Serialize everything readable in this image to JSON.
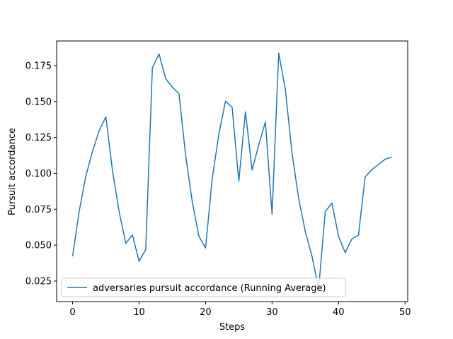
{
  "chart_data": {
    "type": "line",
    "title": "",
    "xlabel": "Steps",
    "ylabel": "Pursuit accordance",
    "xlim": [
      -2.4,
      50.4
    ],
    "ylim": [
      0.0107,
      0.1922
    ],
    "x_ticks": [
      0,
      10,
      20,
      30,
      40,
      50
    ],
    "y_ticks": [
      0.025,
      0.05,
      0.075,
      0.1,
      0.125,
      0.15,
      0.175
    ],
    "x_tick_labels": [
      "0",
      "10",
      "20",
      "30",
      "40",
      "50"
    ],
    "y_tick_labels": [
      "0.025",
      "0.050",
      "0.075",
      "0.100",
      "0.125",
      "0.150",
      "0.175"
    ],
    "grid": false,
    "legend_position": "lower-left",
    "series": [
      {
        "name": "adversaries pursuit accordance (Running Average)",
        "color": "#1f77b4",
        "x": [
          0,
          1,
          2,
          3,
          4,
          5,
          6,
          7,
          8,
          9,
          10,
          11,
          12,
          13,
          14,
          15,
          16,
          17,
          18,
          19,
          20,
          21,
          22,
          23,
          24,
          25,
          26,
          27,
          28,
          29,
          30,
          31,
          32,
          33,
          34,
          35,
          36,
          37,
          38,
          39,
          40,
          41,
          42,
          43,
          44,
          45,
          46,
          47,
          48
        ],
        "y": [
          0.0422,
          0.0738,
          0.0982,
          0.1154,
          0.1297,
          0.1394,
          0.1019,
          0.0733,
          0.0513,
          0.0571,
          0.0388,
          0.0469,
          0.1735,
          0.1832,
          0.166,
          0.16,
          0.1555,
          0.1125,
          0.0802,
          0.0562,
          0.048,
          0.0963,
          0.1273,
          0.1503,
          0.1459,
          0.0946,
          0.1429,
          0.1023,
          0.1199,
          0.1358,
          0.0716,
          0.1838,
          0.1585,
          0.1142,
          0.0826,
          0.0594,
          0.0424,
          0.0195,
          0.0733,
          0.0793,
          0.0562,
          0.0448,
          0.0543,
          0.057,
          0.0975,
          0.1026,
          0.1062,
          0.1098,
          0.1113
        ]
      }
    ]
  }
}
